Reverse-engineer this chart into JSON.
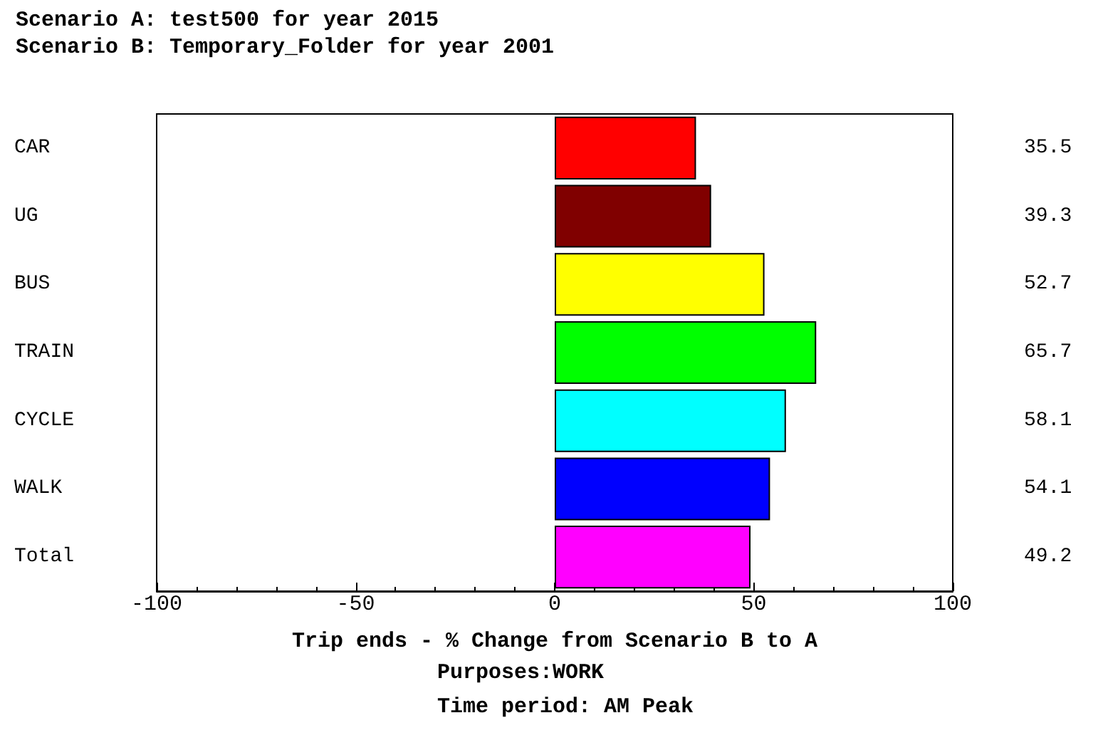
{
  "chart_data": {
    "type": "bar",
    "orientation": "horizontal",
    "title": "Scenario A: test500 for year 2015",
    "subtitle": "Scenario B: Temporary_Folder for year 2001",
    "xlabel": "Trip ends - % Change from Scenario B to A",
    "annotations": [
      "Purposes:WORK",
      "Time period: AM Peak"
    ],
    "categories": [
      "CAR",
      "UG",
      "BUS",
      "TRAIN",
      "CYCLE",
      "WALK",
      "Total"
    ],
    "values": [
      35.5,
      39.3,
      52.7,
      65.7,
      58.1,
      54.1,
      49.2
    ],
    "colors": [
      "#ff0000",
      "#800000",
      "#ffff00",
      "#00ff00",
      "#00ffff",
      "#0000ff",
      "#ff00ff"
    ],
    "value_labels": [
      "35.5",
      "39.3",
      "52.7",
      "65.7",
      "58.1",
      "54.1",
      "49.2"
    ],
    "xlim": [
      -100,
      100
    ],
    "xticks": [
      -100,
      -50,
      0,
      50,
      100
    ],
    "grid": false
  }
}
